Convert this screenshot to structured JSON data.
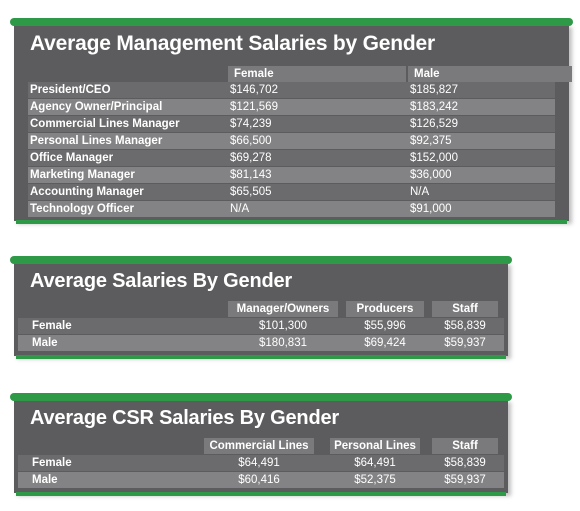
{
  "management": {
    "title": "Average Management Salaries by Gender",
    "headers": [
      "Female",
      "Male"
    ],
    "rows": [
      {
        "label": "President/CEO",
        "female": "$146,702",
        "male": "$185,827"
      },
      {
        "label": "Agency Owner/Principal",
        "female": "$121,569",
        "male": "$183,242"
      },
      {
        "label": "Commercial Lines Manager",
        "female": "$74,239",
        "male": "$126,529"
      },
      {
        "label": "Personal Lines Manager",
        "female": "$66,500",
        "male": "$92,375"
      },
      {
        "label": "Office Manager",
        "female": "$69,278",
        "male": "$152,000"
      },
      {
        "label": "Marketing Manager",
        "female": "$81,143",
        "male": "$36,000"
      },
      {
        "label": "Accounting Manager",
        "female": "$65,505",
        "male": "N/A"
      },
      {
        "label": "Technology Officer",
        "female": "N/A",
        "male": "$91,000"
      }
    ]
  },
  "salaries": {
    "title": "Average Salaries By Gender",
    "headers": [
      "Manager/Owners",
      "Producers",
      "Staff"
    ],
    "rows": [
      {
        "label": "Female",
        "values": [
          "$101,300",
          "$55,996",
          "$58,839"
        ]
      },
      {
        "label": "Male",
        "values": [
          "$180,831",
          "$69,424",
          "$59,937"
        ]
      }
    ]
  },
  "csr": {
    "title": "Average CSR Salaries By Gender",
    "headers": [
      "Commercial Lines",
      "Personal Lines",
      "Staff"
    ],
    "rows": [
      {
        "label": "Female",
        "values": [
          "$64,491",
          "$64,491",
          "$58,839"
        ]
      },
      {
        "label": "Male",
        "values": [
          "$60,416",
          "$52,375",
          "$59,937"
        ]
      }
    ]
  },
  "colors": {
    "panel": "#5c5c5e",
    "row_dark": "#6b6b6d",
    "row_light": "#838385",
    "accent_green": "#2e9a48",
    "text": "#ffffff"
  }
}
